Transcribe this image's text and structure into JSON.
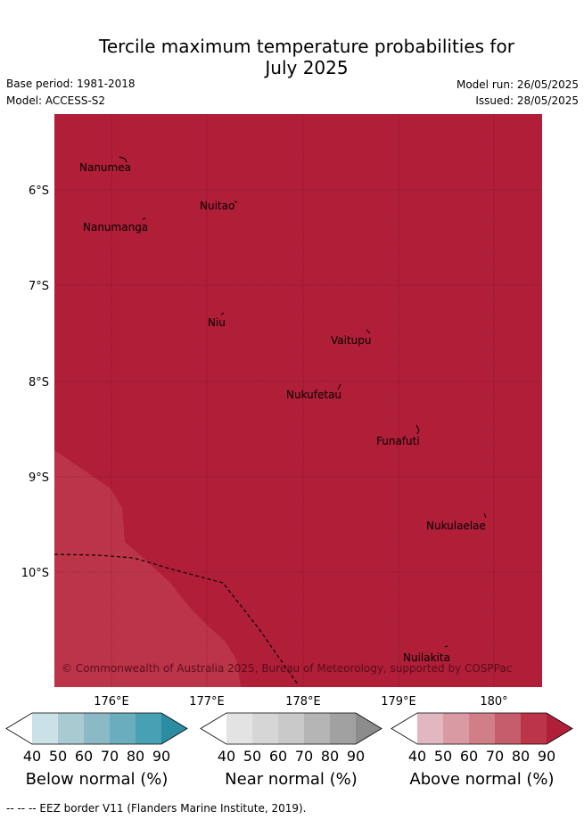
{
  "title": "Tercile maximum temperature probabilities for\nJuly 2025",
  "base_period": "Base period: 1981-2018",
  "model": "Model: ACCESS-S2",
  "model_run": "Model run: 26/05/2025",
  "issued": "Issued: 28/05/2025",
  "copyright": "© Commonwealth of Australia 2025, Bureau of Meteorology, supported by COSPPac",
  "footer": "--  --  -- EEZ border V11 (Flanders Marine Institute, 2019).",
  "map": {
    "lat_labels": [
      "6°S",
      "7°S",
      "8°S",
      "9°S",
      "10°S"
    ],
    "lon_labels": [
      "176°E",
      "177°E",
      "178°E",
      "179°E",
      "180°"
    ],
    "places": [
      {
        "name": "Nanumea"
      },
      {
        "name": "Nuitao"
      },
      {
        "name": "Nanumanga"
      },
      {
        "name": "Niu"
      },
      {
        "name": "Vaitupu"
      },
      {
        "name": "Nukufetau"
      },
      {
        "name": "Funafuti"
      },
      {
        "name": "Nukulaelae"
      },
      {
        "name": "Nuilakita"
      }
    ],
    "colors": {
      "above_90": "#b01e38",
      "above_80": "#bc3448"
    }
  },
  "colorbars": [
    {
      "label": "Below normal (%)",
      "ticks": [
        "40",
        "50",
        "60",
        "70",
        "80",
        "90"
      ],
      "colors": [
        "#c9e1e7",
        "#a8cbd1",
        "#8cb9c6",
        "#6aadbf",
        "#47a0b3",
        "#2b8ca2"
      ]
    },
    {
      "label": "Near normal (%)",
      "ticks": [
        "40",
        "50",
        "60",
        "70",
        "80",
        "90"
      ],
      "colors": [
        "#e3e3e3",
        "#d6d6d6",
        "#c9c9c9",
        "#b5b5b5",
        "#a1a1a1",
        "#8c8c8c"
      ]
    },
    {
      "label": "Above normal (%)",
      "ticks": [
        "40",
        "50",
        "60",
        "70",
        "80",
        "90"
      ],
      "colors": [
        "#e2b8c0",
        "#d99aa3",
        "#d07f88",
        "#c65d6d",
        "#bc3448",
        "#b01e38"
      ]
    }
  ]
}
